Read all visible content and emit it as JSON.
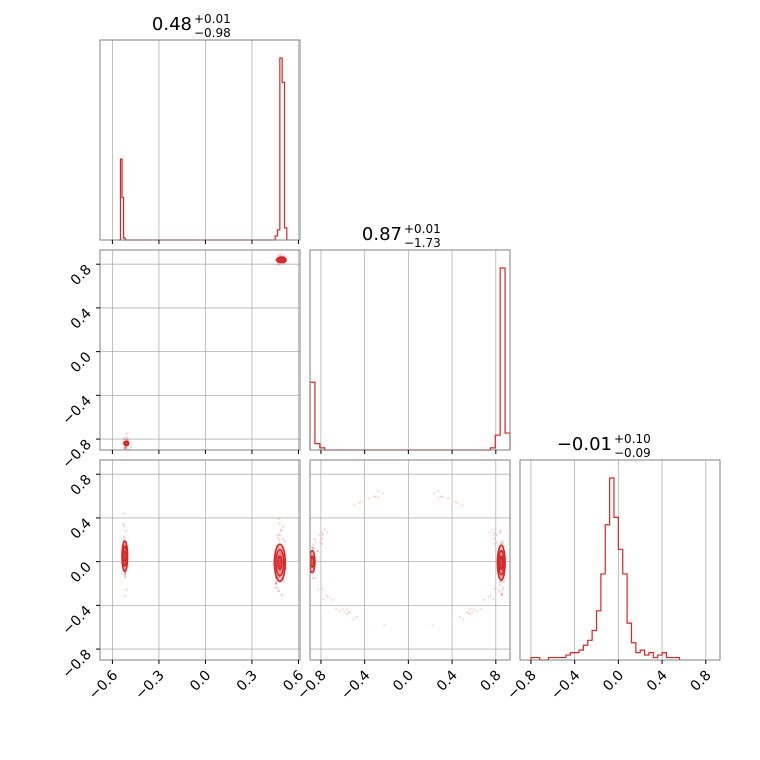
{
  "colors": {
    "series": "#d62728",
    "frame": "#808080",
    "grid": "#b0b0b0"
  },
  "chart_data": {
    "type": "corner",
    "params": [
      {
        "name": "p0",
        "median": "0.48",
        "upper": "+0.01",
        "lower": "−0.98",
        "range": [
          -0.68,
          0.61
        ],
        "ticks": [
          -0.6,
          -0.3,
          0.0,
          0.3,
          0.6
        ],
        "tick_labels": [
          "−0.6",
          "−0.3",
          "0.0",
          "0.3",
          "0.6"
        ],
        "hist_bins": [
          -0.558,
          -0.548,
          -0.538,
          -0.528,
          -0.518,
          0.45,
          0.465,
          0.48,
          0.495,
          0.51,
          0.525
        ],
        "hist_counts": [
          0,
          0.4,
          0.21,
          0.01,
          0,
          0.02,
          0.05,
          0.9,
          0.78,
          0.06,
          0.01
        ]
      },
      {
        "name": "p1",
        "median": "0.87",
        "upper": "+0.01",
        "lower": "−1.73",
        "range": [
          -0.9,
          0.93
        ],
        "ticks": [
          -0.8,
          -0.4,
          0.0,
          0.4,
          0.8
        ],
        "tick_labels": [
          "−0.8",
          "−0.4",
          "0.0",
          "0.4",
          "0.8"
        ],
        "hist_bins": [
          -0.9,
          -0.855,
          -0.81,
          -0.765,
          0.75,
          0.795,
          0.84,
          0.885,
          0.93
        ],
        "hist_counts": [
          0.32,
          0.03,
          0.01,
          0,
          0.01,
          0.07,
          0.86,
          0.08,
          0
        ]
      },
      {
        "name": "p2",
        "median": "−0.01",
        "upper": "+0.10",
        "lower": "−0.09",
        "range": [
          -0.9,
          0.93
        ],
        "ticks": [
          -0.8,
          -0.4,
          0.0,
          0.4,
          0.8
        ],
        "tick_labels": [
          "−0.8",
          "−0.4",
          "0.0",
          "0.4",
          "0.8"
        ],
        "hist_bins": [
          -0.8,
          -0.72,
          -0.64,
          -0.56,
          -0.48,
          -0.44,
          -0.4,
          -0.36,
          -0.32,
          -0.28,
          -0.24,
          -0.2,
          -0.16,
          -0.12,
          -0.08,
          -0.04,
          0.0,
          0.04,
          0.08,
          0.12,
          0.16,
          0.2,
          0.24,
          0.28,
          0.32,
          0.36,
          0.4,
          0.44,
          0.48,
          0.56
        ],
        "hist_counts": [
          0.01,
          0,
          0.01,
          0.01,
          0.02,
          0.03,
          0.03,
          0.04,
          0.06,
          0.08,
          0.12,
          0.2,
          0.35,
          0.55,
          0.74,
          0.58,
          0.45,
          0.35,
          0.15,
          0.07,
          0.03,
          0.04,
          0.02,
          0.03,
          0.01,
          0.02,
          0.03,
          0.01,
          0.01,
          0
        ]
      }
    ],
    "pairs": [
      {
        "x": 0,
        "y": 1,
        "clusters": [
          {
            "cx": 0.49,
            "cy": 0.84,
            "sx": 0.025,
            "sy": 0.03,
            "n": 50,
            "contours": [
              [
                0.03,
                0.025
              ],
              [
                0.018,
                0.015
              ]
            ]
          },
          {
            "cx": -0.51,
            "cy": -0.84,
            "sx": 0.015,
            "sy": 0.05,
            "n": 30,
            "contours": [
              [
                0.015,
                0.02
              ],
              [
                0.008,
                0.01
              ]
            ]
          }
        ]
      },
      {
        "x": 0,
        "y": 2,
        "clusters": [
          {
            "cx": -0.52,
            "cy": 0.05,
            "sx": 0.012,
            "sy": 0.2,
            "n": 45,
            "contours": [
              [
                0.018,
                0.14
              ],
              [
                0.011,
                0.09
              ],
              [
                0.005,
                0.04
              ]
            ]
          },
          {
            "cx": 0.48,
            "cy": -0.01,
            "sx": 0.03,
            "sy": 0.22,
            "n": 70,
            "contours": [
              [
                0.035,
                0.17
              ],
              [
                0.025,
                0.12
              ],
              [
                0.012,
                0.06
              ]
            ]
          }
        ]
      },
      {
        "x": 1,
        "y": 2,
        "clusters": [
          {
            "cx": -0.88,
            "cy": 0.0,
            "sx": 0.02,
            "sy": 0.12,
            "n": 20,
            "contours": [
              [
                0.025,
                0.1
              ],
              [
                0.015,
                0.05
              ]
            ]
          },
          {
            "cx": 0.85,
            "cy": -0.01,
            "sx": 0.02,
            "sy": 0.22,
            "n": 55,
            "contours": [
              [
                0.035,
                0.16
              ],
              [
                0.025,
                0.11
              ],
              [
                0.012,
                0.06
              ]
            ]
          },
          {
            "arc": true,
            "n": 40
          }
        ]
      }
    ]
  }
}
